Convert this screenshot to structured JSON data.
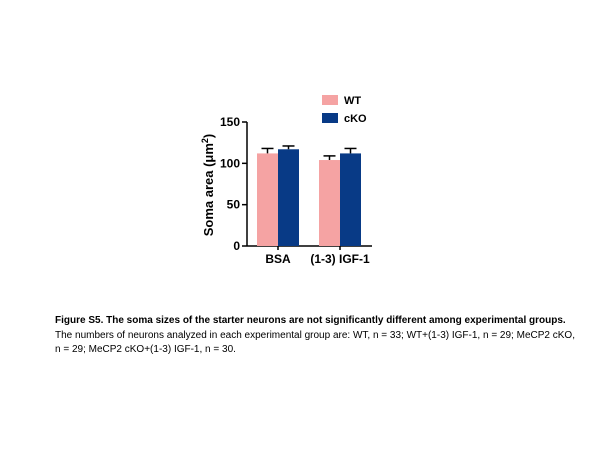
{
  "chart_data": {
    "type": "bar",
    "categories": [
      "BSA",
      "(1-3) IGF-1"
    ],
    "series": [
      {
        "name": "WT",
        "values": [
          112,
          104
        ],
        "errors": [
          6,
          5
        ],
        "color": "#f5a3a3"
      },
      {
        "name": "cKO",
        "values": [
          117,
          112
        ],
        "errors": [
          4,
          6
        ],
        "color": "#083a86"
      }
    ],
    "ylabel_main": "Soma area (μm",
    "ylabel_sup": "2",
    "ylabel_close": ")",
    "ylim": [
      0,
      150
    ],
    "yticks": [
      0,
      50,
      100,
      150
    ],
    "grid": false,
    "legend_position": "top-right"
  },
  "caption": {
    "title": "Figure S5. The soma sizes of the starter neurons are not significantly different among experimental groups.",
    "body": "The numbers of neurons analyzed in each experimental group are: WT, n = 33; WT+(1-3) IGF-1, n = 29; MeCP2 cKO, n = 29; MeCP2 cKO+(1-3) IGF-1, n = 30."
  }
}
